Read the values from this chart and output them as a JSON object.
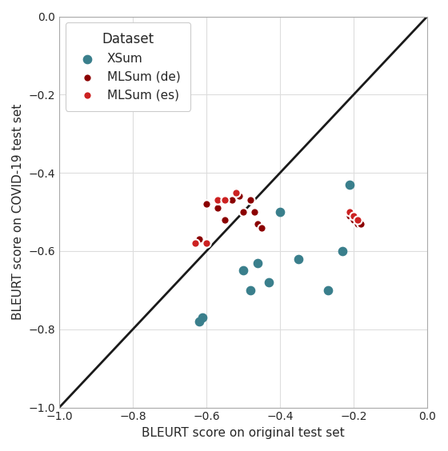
{
  "xsum_x": [
    -0.62,
    -0.61,
    -0.5,
    -0.48,
    -0.46,
    -0.43,
    -0.4,
    -0.35,
    -0.27,
    -0.23,
    -0.21
  ],
  "xsum_y": [
    -0.78,
    -0.77,
    -0.65,
    -0.7,
    -0.63,
    -0.68,
    -0.5,
    -0.62,
    -0.7,
    -0.6,
    -0.43
  ],
  "mlsum_de_x": [
    -0.62,
    -0.6,
    -0.57,
    -0.55,
    -0.53,
    -0.51,
    -0.5,
    -0.48,
    -0.47,
    -0.46,
    -0.45,
    -0.21,
    -0.2,
    -0.19,
    -0.18
  ],
  "mlsum_de_y": [
    -0.57,
    -0.48,
    -0.49,
    -0.52,
    -0.47,
    -0.46,
    -0.5,
    -0.47,
    -0.5,
    -0.53,
    -0.54,
    -0.51,
    -0.52,
    -0.53,
    -0.53
  ],
  "mlsum_es_x": [
    -0.63,
    -0.6,
    -0.57,
    -0.55,
    -0.52,
    -0.21,
    -0.2,
    -0.19
  ],
  "mlsum_es_y": [
    -0.58,
    -0.58,
    -0.47,
    -0.47,
    -0.45,
    -0.5,
    -0.51,
    -0.52
  ],
  "xsum_color": "#3a7f8c",
  "xsum_edge": "#3a7f8c",
  "mlsum_de_color": "#8b0000",
  "mlsum_de_edge": "#ffffff",
  "mlsum_es_color": "#cc2222",
  "mlsum_es_edge": "#ffffff",
  "diagonal_color": "#1a1a1a",
  "xlabel": "BLEURT score on original test set",
  "ylabel": "BLEURT score on COVID-19 test set",
  "legend_title": "Dataset",
  "xlim": [
    -1.0,
    0.0
  ],
  "ylim": [
    -1.0,
    0.0
  ],
  "xticks": [
    -1.0,
    -0.8,
    -0.6,
    -0.4,
    -0.2,
    0.0
  ],
  "yticks": [
    -1.0,
    -0.8,
    -0.6,
    -0.4,
    -0.2,
    0.0
  ],
  "marker_size": 55,
  "background_color": "#ffffff",
  "grid_color": "#dddddd",
  "linewidth_diag": 2.0
}
